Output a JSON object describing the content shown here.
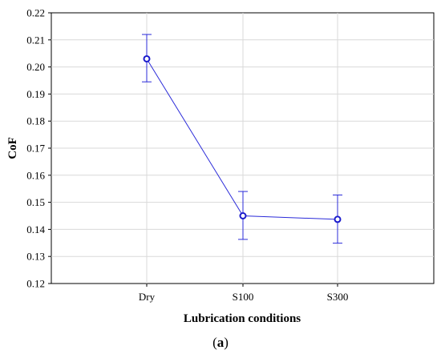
{
  "chart_data": {
    "type": "line",
    "categories": [
      "Dry",
      "S100",
      "S300"
    ],
    "values": [
      0.203,
      0.145,
      0.1437
    ],
    "error_upper": [
      0.212,
      0.154,
      0.1527
    ],
    "error_lower": [
      0.1945,
      0.1363,
      0.1349
    ],
    "xlabel": "Lubrication conditions",
    "ylabel": "CoF",
    "ylim": [
      0.12,
      0.22
    ],
    "yticks": [
      "0.12",
      "0.13",
      "0.14",
      "0.15",
      "0.16",
      "0.17",
      "0.18",
      "0.19",
      "0.20",
      "0.21",
      "0.22"
    ],
    "grid": true,
    "series_color": "#2b2bd9"
  },
  "caption": {
    "open": "(",
    "letter": "a",
    "close": ")"
  }
}
